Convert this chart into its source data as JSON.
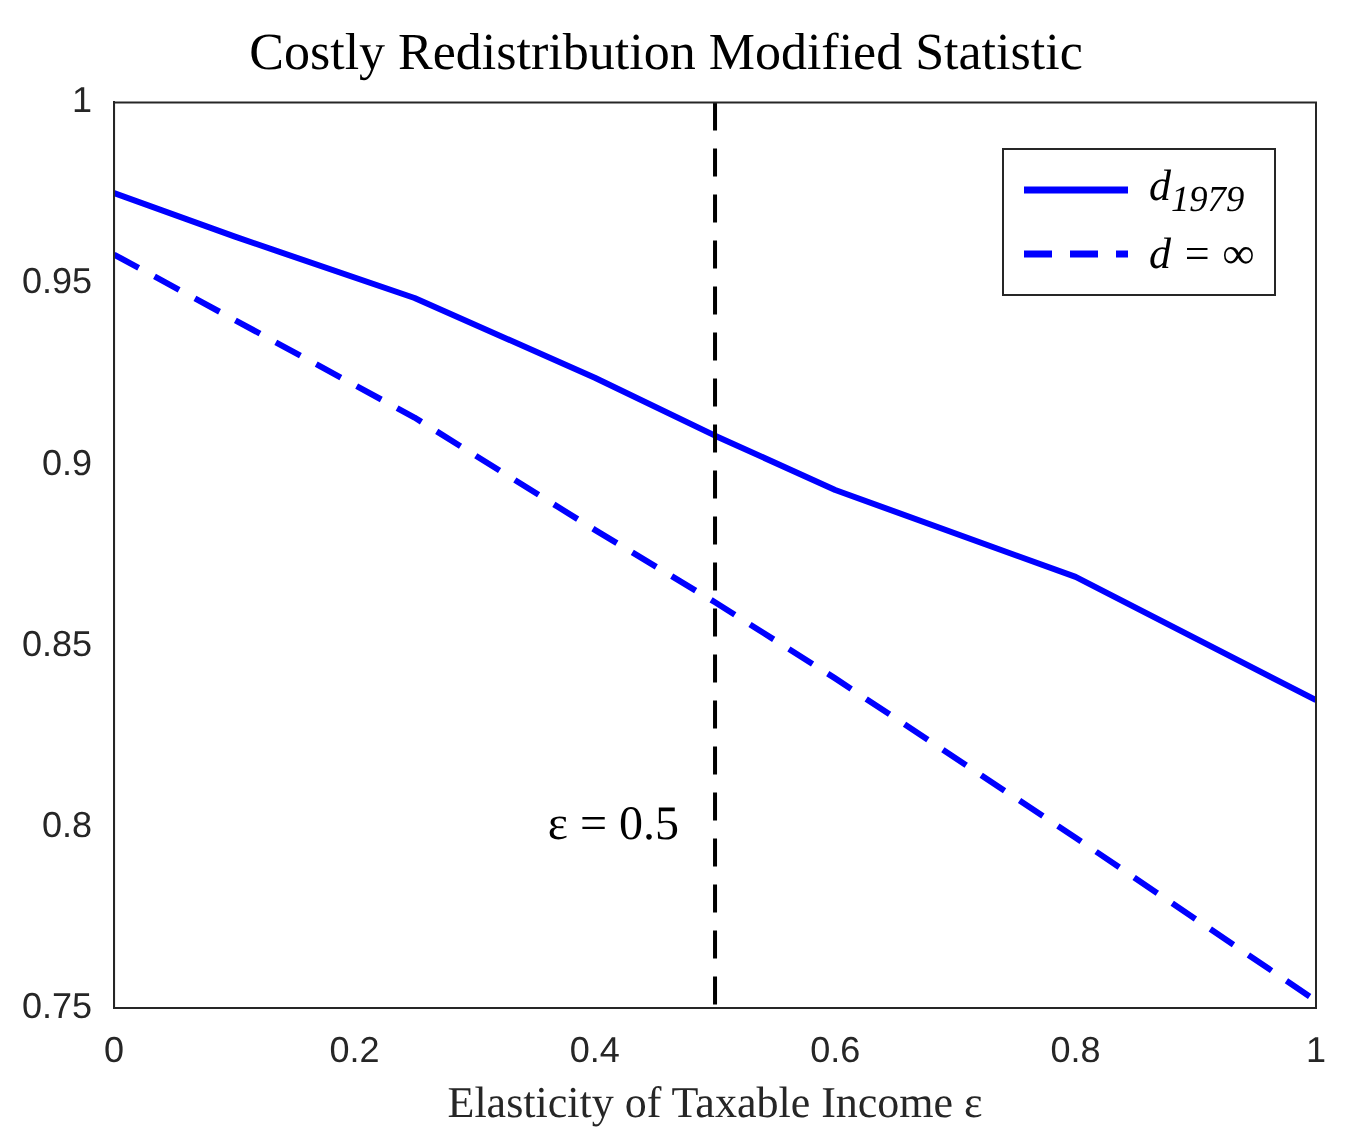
{
  "chart_data": {
    "type": "line",
    "title": "Costly Redistribution Modified Statistic",
    "xlabel": "Elasticity of Taxable Income ε",
    "x": [
      0,
      0.1,
      0.25,
      0.4,
      0.5,
      0.6,
      0.8,
      1
    ],
    "series": [
      {
        "name": "d$_{1979}$",
        "color": "#0000ff",
        "line_style": "solid",
        "values": [
          0.975,
          0.963,
          0.946,
          0.924,
          0.908,
          0.893,
          0.869,
          0.835
        ]
      },
      {
        "name": "d = ∞",
        "color": "#0000ff",
        "line_style": "dashed",
        "values": [
          0.958,
          0.94,
          0.913,
          0.882,
          0.862,
          0.841,
          0.797,
          0.752
        ]
      }
    ],
    "xlim": [
      0,
      1
    ],
    "xticks": [
      0,
      0.2,
      0.4,
      0.6,
      0.8,
      1
    ],
    "ylim": [
      0.75,
      1
    ],
    "yticks": [
      0.75,
      0.8,
      0.85,
      0.9,
      0.95,
      1
    ],
    "ref_lines": [
      {
        "axis": "x",
        "value": 0.5,
        "label": "ε = 0.5",
        "color": "#000000",
        "line_style": "dashed"
      }
    ],
    "grid": false,
    "legend": "top right"
  }
}
